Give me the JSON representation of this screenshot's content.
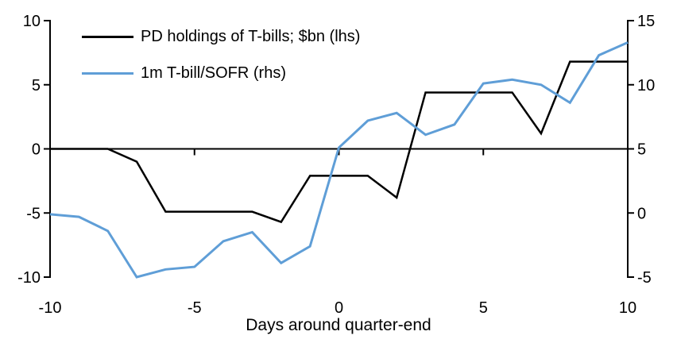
{
  "chart_data": {
    "type": "line",
    "title": "",
    "xlabel": "Days around quarter-end",
    "grid": false,
    "legend_position": "top-left",
    "background": "#ffffff",
    "axis_color": "#000000",
    "x": [
      -10,
      -9,
      -8,
      -7,
      -6,
      -5,
      -4,
      -3,
      -2,
      -1,
      0,
      1,
      2,
      3,
      4,
      5,
      6,
      7,
      8,
      9,
      10
    ],
    "x_axis": {
      "min": -10,
      "max": 10,
      "ticks": [
        -10,
        -5,
        0,
        5,
        10
      ]
    },
    "left_axis": {
      "min": -10,
      "max": 10,
      "ticks": [
        10,
        5,
        0,
        -5,
        -10
      ]
    },
    "right_axis": {
      "min": -5,
      "max": 15,
      "ticks": [
        15,
        10,
        5,
        0,
        -5
      ]
    },
    "series": [
      {
        "name": "PD holdings of T-bills; $bn (lhs)",
        "axis": "left",
        "color": "#000000",
        "stroke_width": 2.5,
        "values": [
          0,
          0,
          0,
          -1.0,
          -4.9,
          -4.9,
          -4.9,
          -4.9,
          -5.7,
          -2.1,
          -2.1,
          -2.1,
          -3.8,
          4.4,
          4.4,
          4.4,
          4.4,
          1.2,
          6.8,
          6.8,
          6.8
        ]
      },
      {
        "name": "1m T-bill/SOFR (rhs)",
        "axis": "right",
        "color": "#5f9ed7",
        "stroke_width": 3,
        "values": [
          -0.1,
          -0.3,
          -1.4,
          -5.0,
          -4.4,
          -4.2,
          -2.2,
          -1.5,
          -3.9,
          -2.6,
          5.1,
          7.2,
          7.8,
          6.1,
          6.9,
          10.1,
          10.4,
          10.0,
          8.6,
          12.3,
          13.3
        ]
      }
    ]
  }
}
